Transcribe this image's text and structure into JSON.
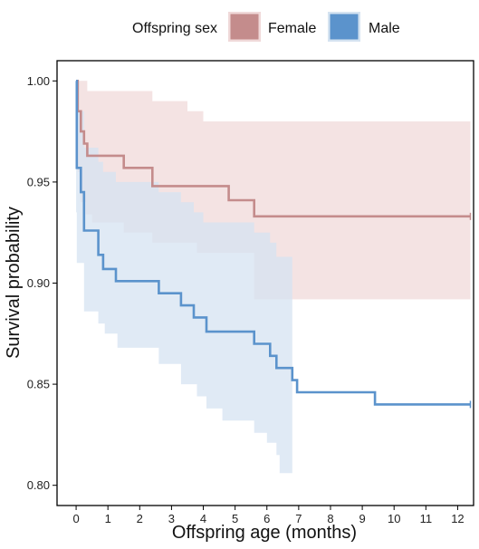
{
  "chart_data": {
    "type": "line",
    "subtype": "kaplan-meier survival curve with confidence bands",
    "xlabel": "Offspring age (months)",
    "ylabel": "Survival probability",
    "xlim": [
      -0.6,
      12.5
    ],
    "ylim": [
      0.79,
      1.01
    ],
    "xticks": [
      0,
      1,
      2,
      3,
      4,
      5,
      6,
      7,
      8,
      9,
      10,
      11,
      12
    ],
    "yticks": [
      0.8,
      0.85,
      0.9,
      0.95,
      1.0
    ],
    "ytick_labels": [
      "0.80",
      "0.85",
      "0.90",
      "0.95",
      "1.00"
    ],
    "grid": false,
    "legend": {
      "title": "Offspring sex",
      "position": "top"
    },
    "series": [
      {
        "name": "Female",
        "line_color": "#c48c8c",
        "band_color": "#f0d9d9",
        "steps": [
          [
            0,
            1.0
          ],
          [
            0.05,
            0.985
          ],
          [
            0.15,
            0.975
          ],
          [
            0.25,
            0.969
          ],
          [
            0.35,
            0.963
          ],
          [
            1.5,
            0.957
          ],
          [
            2.4,
            0.948
          ],
          [
            4.8,
            0.941
          ],
          [
            5.6,
            0.933
          ],
          [
            12.4,
            0.933
          ]
        ],
        "lower": [
          [
            0,
            1.0
          ],
          [
            0.05,
            0.955
          ],
          [
            0.15,
            0.94
          ],
          [
            0.3,
            0.934
          ],
          [
            0.5,
            0.93
          ],
          [
            1.5,
            0.925
          ],
          [
            2.4,
            0.92
          ],
          [
            3.8,
            0.915
          ],
          [
            5.6,
            0.892
          ],
          [
            12.4,
            0.892
          ]
        ],
        "upper": [
          [
            0,
            1.0
          ],
          [
            0.35,
            0.995
          ],
          [
            1.5,
            0.995
          ],
          [
            2.4,
            0.99
          ],
          [
            3.5,
            0.985
          ],
          [
            4.0,
            0.98
          ],
          [
            12.4,
            0.977
          ]
        ],
        "censor_x": [
          12.4
        ]
      },
      {
        "name": "Male",
        "line_color": "#5b93cc",
        "band_color": "#d5e3f1",
        "steps": [
          [
            0,
            1.0
          ],
          [
            0.02,
            0.957
          ],
          [
            0.15,
            0.945
          ],
          [
            0.25,
            0.926
          ],
          [
            0.7,
            0.914
          ],
          [
            0.85,
            0.907
          ],
          [
            1.25,
            0.901
          ],
          [
            2.6,
            0.895
          ],
          [
            3.3,
            0.889
          ],
          [
            3.7,
            0.883
          ],
          [
            4.1,
            0.876
          ],
          [
            5.6,
            0.87
          ],
          [
            6.1,
            0.864
          ],
          [
            6.3,
            0.858
          ],
          [
            6.8,
            0.852
          ],
          [
            6.95,
            0.846
          ],
          [
            9.4,
            0.84
          ],
          [
            12.4,
            0.84
          ]
        ],
        "lower": [
          [
            0,
            0.935
          ],
          [
            0.02,
            0.91
          ],
          [
            0.25,
            0.886
          ],
          [
            0.7,
            0.88
          ],
          [
            0.9,
            0.875
          ],
          [
            1.3,
            0.868
          ],
          [
            2.6,
            0.86
          ],
          [
            3.3,
            0.85
          ],
          [
            3.8,
            0.844
          ],
          [
            4.1,
            0.838
          ],
          [
            4.6,
            0.832
          ],
          [
            5.6,
            0.826
          ],
          [
            6.0,
            0.821
          ],
          [
            6.3,
            0.815
          ],
          [
            6.4,
            0.806
          ],
          [
            6.8,
            0.806
          ]
        ],
        "upper": [
          [
            0,
            1.0
          ],
          [
            0.1,
            0.985
          ],
          [
            0.25,
            0.967
          ],
          [
            0.7,
            0.96
          ],
          [
            0.85,
            0.955
          ],
          [
            1.25,
            0.95
          ],
          [
            2.6,
            0.945
          ],
          [
            3.3,
            0.94
          ],
          [
            3.7,
            0.935
          ],
          [
            4.0,
            0.93
          ],
          [
            5.6,
            0.925
          ],
          [
            6.1,
            0.92
          ],
          [
            6.3,
            0.913
          ],
          [
            6.8,
            0.913
          ]
        ],
        "censor_x": [
          12.4
        ]
      }
    ]
  }
}
